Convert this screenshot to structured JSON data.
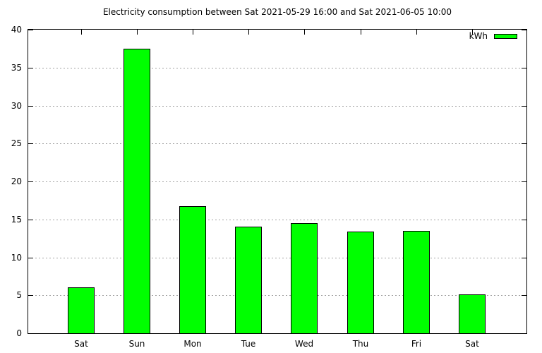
{
  "title": "Electricity consumption between Sat 2021-05-29 16:00 and Sat 2021-06-05 10:00",
  "legend": {
    "label": "kWh",
    "position": "top-right inside plot"
  },
  "chart_data": {
    "type": "bar",
    "title": "Electricity consumption between Sat 2021-05-29 16:00 and Sat 2021-06-05 10:00",
    "categories": [
      "Sat",
      "Sun",
      "Mon",
      "Tue",
      "Wed",
      "Thu",
      "Fri",
      "Sat"
    ],
    "values": [
      6.0,
      37.5,
      16.7,
      14.0,
      14.5,
      13.4,
      13.5,
      5.1
    ],
    "series_name": "kWh",
    "xlabel": "",
    "ylabel": "",
    "ylim": [
      0,
      40
    ],
    "yticks": [
      0,
      5,
      10,
      15,
      20,
      25,
      30,
      35,
      40
    ],
    "grid": "horizontal dotted gridlines at major y ticks",
    "legend_position": "top-right",
    "colors": {
      "bar_fill": "#00ff00",
      "bar_border": "#000000",
      "grid_line": "#a2a2a2",
      "axis": "#000000",
      "background": "#ffffff",
      "text": "#000000"
    }
  }
}
